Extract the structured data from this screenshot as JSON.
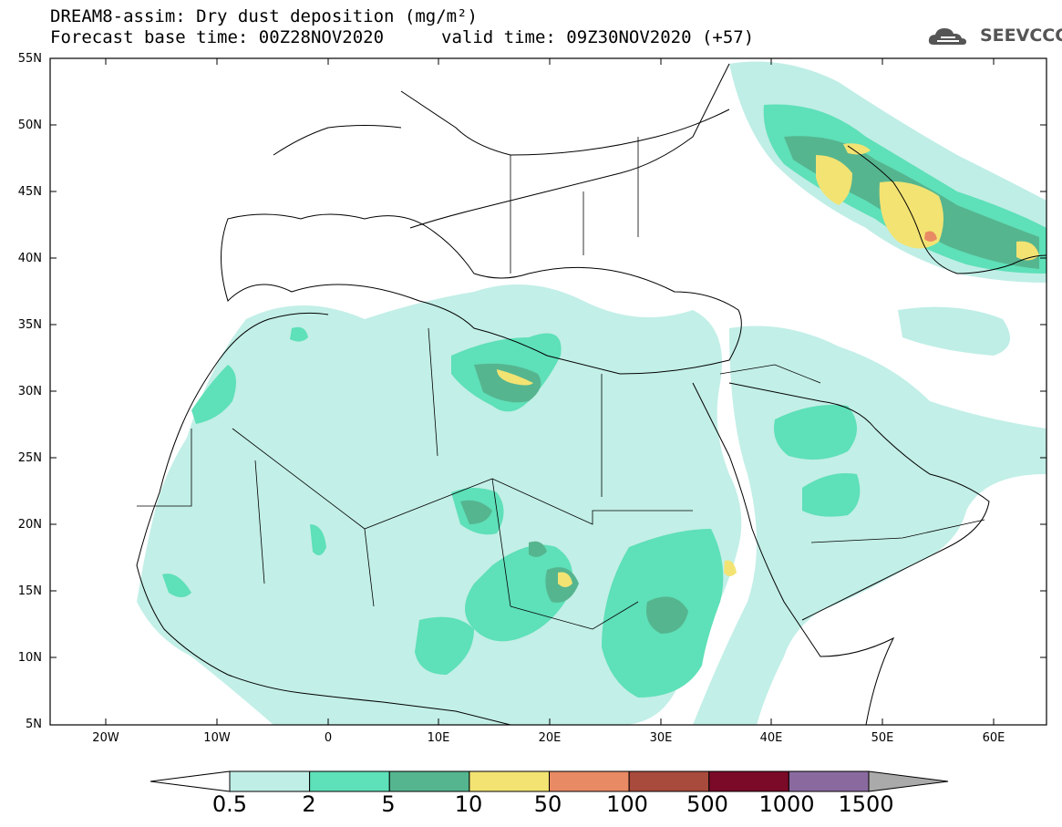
{
  "header": {
    "title_line1": "DREAM8-assim: Dry dust deposition (mg/m²)",
    "title_line2": "Forecast base time: 00Z28NOV2020",
    "valid_time": "valid time: 09Z30NOV2020 (+57)",
    "logo_text": "SEEVCCC"
  },
  "axes": {
    "lat_labels": [
      "55N",
      "50N",
      "45N",
      "40N",
      "35N",
      "30N",
      "25N",
      "20N",
      "15N",
      "10N",
      "5N"
    ],
    "lon_labels": [
      "20W",
      "10W",
      "0",
      "10E",
      "20E",
      "30E",
      "40E",
      "50E",
      "60E"
    ]
  },
  "legend": {
    "levels": [
      "0.5",
      "2",
      "5",
      "10",
      "50",
      "100",
      "500",
      "1000",
      "1500"
    ],
    "colors": [
      "#ffffff",
      "#bfeee6",
      "#5ee0b8",
      "#55b58f",
      "#f2e373",
      "#e88a63",
      "#a84a3c",
      "#7a0a28",
      "#8a6a9e",
      "#aaaaaa"
    ]
  }
}
